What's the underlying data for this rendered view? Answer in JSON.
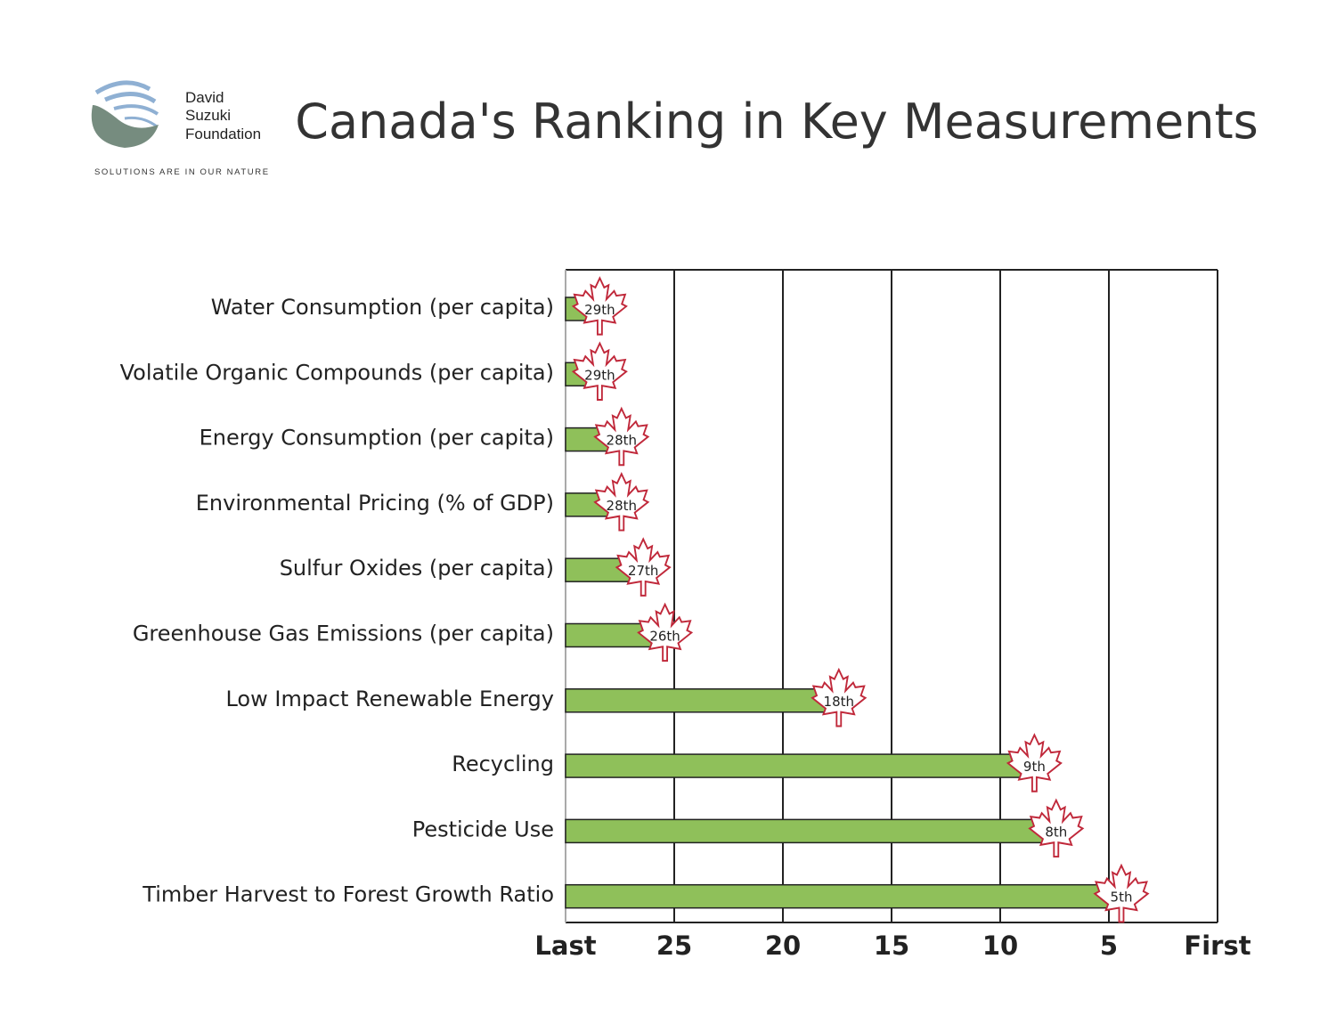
{
  "logo": {
    "lines": [
      "David",
      "Suzuki",
      "Foundation"
    ],
    "tagline": "SOLUTIONS ARE IN OUR NATURE"
  },
  "chart_data": {
    "type": "bar",
    "orientation": "horizontal",
    "title": "Canada's Ranking in Key Measurements",
    "categories": [
      "Water Consumption (per capita)",
      "Volatile Organic Compounds (per capita)",
      "Energy Consumption (per capita)",
      "Environmental Pricing (% of GDP)",
      "Sulfur Oxides (per capita)",
      "Greenhouse Gas Emissions (per capita)",
      "Low Impact Renewable Energy",
      "Recycling",
      "Pesticide Use",
      "Timber Harvest to Forest Growth Ratio"
    ],
    "values": [
      29,
      29,
      28,
      28,
      27,
      26,
      18,
      9,
      8,
      5
    ],
    "data_labels": [
      "29th",
      "29th",
      "28th",
      "28th",
      "27th",
      "26th",
      "18th",
      "9th",
      "8th",
      "5th"
    ],
    "x_ticks": [
      {
        "value": 30,
        "label": "Last"
      },
      {
        "value": 25,
        "label": "25"
      },
      {
        "value": 20,
        "label": "20"
      },
      {
        "value": 15,
        "label": "15"
      },
      {
        "value": 10,
        "label": "10"
      },
      {
        "value": 5,
        "label": "5"
      },
      {
        "value": 0,
        "label": "First"
      }
    ],
    "xlim": [
      30,
      0
    ],
    "grid": true,
    "bar_color": "#8fc05a",
    "leaf_outline_color": "#c0283a",
    "marker": "maple-leaf"
  }
}
